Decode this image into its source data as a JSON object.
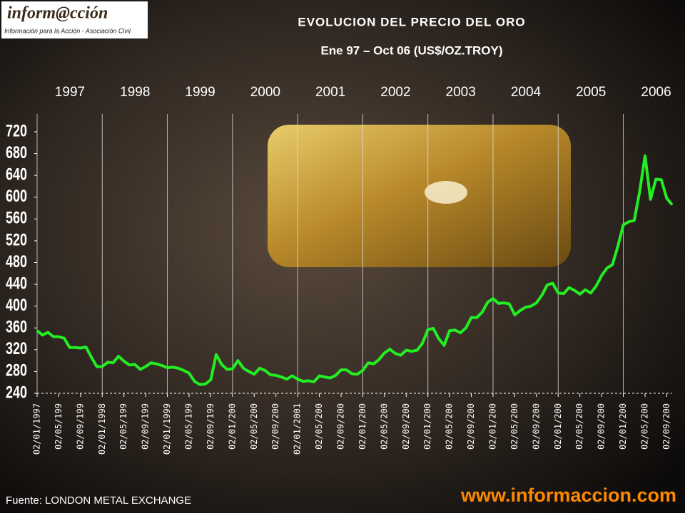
{
  "logo": {
    "title": "inform@cción",
    "subtitle": "Información para la Acción - Asociación Civil"
  },
  "chart_data": {
    "type": "line",
    "title": "EVOLUCION DEL PRECIO DEL ORO",
    "subtitle": "Ene 97 – Oct 06  (US$/OZ.TROY)",
    "year_labels": [
      "1997",
      "1998",
      "1999",
      "2000",
      "2001",
      "2002",
      "2003",
      "2004",
      "2005",
      "2006"
    ],
    "categories": [
      "02/01/1997",
      null,
      null,
      null,
      "02/05/199",
      null,
      null,
      null,
      "02/09/199",
      null,
      null,
      null,
      "02/01/1998",
      null,
      null,
      null,
      "02/05/199",
      null,
      null,
      null,
      "02/09/199",
      null,
      null,
      null,
      "02/01/1999",
      null,
      null,
      null,
      "02/05/199",
      null,
      null,
      null,
      "02/09/199",
      null,
      null,
      null,
      "02/01/200",
      null,
      null,
      null,
      "02/05/200",
      null,
      null,
      null,
      "02/09/200",
      null,
      null,
      null,
      "02/01/2001",
      null,
      null,
      null,
      "02/05/200",
      null,
      null,
      null,
      "02/09/200",
      null,
      null,
      null,
      "02/01/200",
      null,
      null,
      null,
      "02/05/200",
      null,
      null,
      null,
      "02/09/200",
      null,
      null,
      null,
      "02/01/200",
      null,
      null,
      null,
      "02/05/200",
      null,
      null,
      null,
      "02/09/200",
      null,
      null,
      null,
      "02/01/200",
      null,
      null,
      null,
      "02/05/200",
      null,
      null,
      null,
      "02/09/200",
      null,
      null,
      null,
      "02/01/200",
      null,
      null,
      null,
      "02/05/200",
      null,
      null,
      null,
      "02/09/200",
      null,
      null,
      null,
      "02/01/200",
      null,
      null,
      null,
      "02/05/200",
      null,
      null,
      null,
      "02/09/200",
      null
    ],
    "values": [
      355,
      347,
      352,
      344,
      344,
      341,
      324,
      324,
      323,
      325,
      306,
      289,
      289,
      297,
      296,
      308,
      299,
      292,
      293,
      284,
      289,
      296,
      294,
      291,
      287,
      288,
      286,
      282,
      277,
      262,
      256,
      257,
      265,
      311,
      293,
      284,
      285,
      300,
      286,
      280,
      275,
      286,
      282,
      274,
      273,
      270,
      266,
      272,
      266,
      262,
      263,
      261,
      272,
      270,
      268,
      273,
      283,
      283,
      276,
      275,
      282,
      296,
      294,
      302,
      314,
      321,
      313,
      310,
      319,
      317,
      319,
      332,
      357,
      359,
      340,
      328,
      355,
      356,
      351,
      360,
      379,
      379,
      389,
      407,
      414,
      405,
      406,
      404,
      384,
      392,
      398,
      400,
      406,
      420,
      439,
      442,
      424,
      423,
      434,
      429,
      422,
      430,
      424,
      437,
      456,
      470,
      476,
      510,
      549,
      555,
      557,
      610,
      676,
      596,
      633,
      632,
      598,
      586
    ],
    "color": "#22ee22",
    "ylim": [
      240,
      720
    ],
    "yticks": [
      240,
      280,
      320,
      360,
      400,
      440,
      480,
      520,
      560,
      600,
      640,
      680,
      720
    ],
    "grid": true,
    "source": "Fuente:  LONDON METAL EXCHANGE"
  },
  "footer": {
    "url": "www.informaccion.com"
  }
}
